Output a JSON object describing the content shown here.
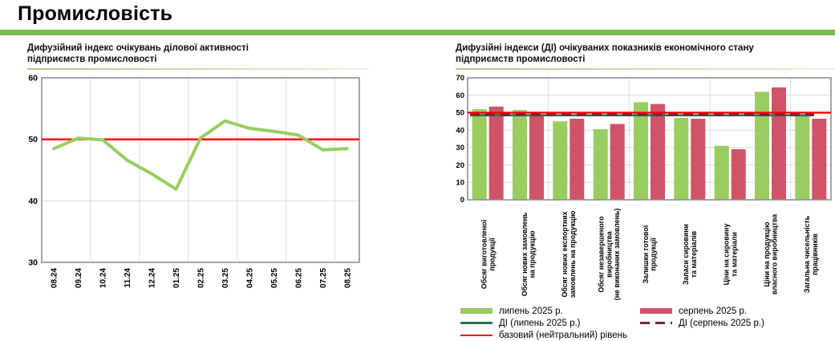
{
  "page_title": "Промисловість",
  "colors": {
    "header_green": "#77B94E",
    "series_july_green": "#9ACD60",
    "series_august_rose": "#D05468",
    "di_july_dark_green": "#1B7B4F",
    "di_august_dark_red": "#7E1F41",
    "baseline_red": "#FF0000",
    "grid_gray": "#DBDBDB",
    "plot_border_gray": "#8F8F8F"
  },
  "chart_data": [
    {
      "type": "line",
      "title": "Дифузійний індекс очікувань ділової активності підприємств промисловості",
      "x": [
        "08.24",
        "09.24",
        "10.24",
        "11.24",
        "12.24",
        "01.25",
        "02.25",
        "03.25",
        "04.25",
        "05.25",
        "06.25",
        "07.25",
        "08.25"
      ],
      "series": [
        {
          "name": "дифузійний індекс очікувань",
          "color": "#9ACD60",
          "values": [
            48.5,
            50.2,
            49.9,
            46.6,
            44.4,
            41.9,
            50.2,
            53.0,
            51.8,
            51.3,
            50.7,
            48.3,
            48.5
          ]
        }
      ],
      "baseline": {
        "name": "базовий (нейтральний) рівень",
        "value": 50,
        "color": "#FF0000"
      },
      "ylim": [
        30,
        60
      ],
      "yticks": [
        30,
        40,
        50,
        60
      ],
      "grid": "light vertical every 2 months, horizontal at ticks",
      "x_tick_rotation": 90
    },
    {
      "type": "bar",
      "title": "Дифузійні індекси (ДІ) очікуваних показників економічного стану підприємств промисловості",
      "categories": [
        "Обсяг виготовленої\nпродукції",
        "Обсяг нових замовлень\nна продукцію",
        "Обсяг нових експортних\nзамовлень на продукцію",
        "Обсяг незавершеного\nвиробництва\n(не виконаних замовлень)",
        "Залишки готової\nпродукції",
        "Запаси сировини\nта матеріалів",
        "Ціни на сировину\nта матеріали",
        "Ціни на продукцію\nвласного виробництва",
        "Загальна чисельність\nпрацівників"
      ],
      "series": [
        {
          "name": "липень 2025 р.",
          "color": "#9ACD60",
          "values": [
            52,
            51.5,
            45,
            40.5,
            56,
            47,
            31,
            62,
            48.8
          ]
        },
        {
          "name": "серпень 2025 р.",
          "color": "#D05468",
          "values": [
            53.5,
            48.5,
            46.5,
            43.5,
            55,
            46.5,
            29,
            64.5,
            46.5
          ]
        }
      ],
      "reference_lines": [
        {
          "name": "ДІ (липень 2025 р.)",
          "value": 48.5,
          "style": "solid",
          "color": "#1B7B4F"
        },
        {
          "name": "ДІ (серпень 2025 р.)",
          "value": 48.8,
          "style": "dashed",
          "color": "#7E1F41"
        },
        {
          "name": "базовий (нейтральний) рівень",
          "value": 50,
          "style": "solid",
          "color": "#FF0000"
        }
      ],
      "ylim": [
        0,
        70
      ],
      "yticks": [
        0,
        10,
        20,
        30,
        40,
        50,
        60,
        70
      ],
      "x_tick_rotation": 90,
      "legend_position": "bottom"
    }
  ]
}
